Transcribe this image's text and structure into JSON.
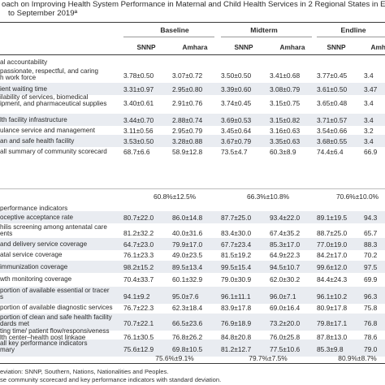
{
  "title": {
    "line1": "oach on Improving Health System Performance in Maternal and Child Health Services in 2 Regional States in Ethiopia, O",
    "line2": "to September 2019ª"
  },
  "groups": [
    "Baseline",
    "Midterm",
    "Endline"
  ],
  "subheaders": [
    "SNNP",
    "Amhara",
    "SNNP",
    "Amhara",
    "SNNP",
    "Amhara"
  ],
  "sections": {
    "s1": "al accountability",
    "s2": "performance indicators"
  },
  "rows": [
    {
      "label": [
        "passionate, respectful, and caring",
        "h work force"
      ],
      "vals": [
        "3.78±0.50",
        "3.07±0.72",
        "3.50±0.50",
        "3.41±0.68",
        "3.77±0.45",
        "3.4"
      ]
    },
    {
      "label": [
        "ient waiting time"
      ],
      "vals": [
        "3.31±0.97",
        "2.95±0.80",
        "3.39±0.60",
        "3.08±0.79",
        "3.61±0.50",
        "3.47"
      ]
    },
    {
      "label": [
        "ilability of services, biomedical",
        "ipment, and pharmaceutical supplies"
      ],
      "vals": [
        "3.40±0.61",
        "2.91±0.76",
        "3.74±0.45",
        "3.15±0.75",
        "3.65±0.48",
        "3.4"
      ]
    },
    {
      "label": [
        "lth facility infrastructure"
      ],
      "vals": [
        "3.44±0.70",
        "2.88±0.74",
        "3.69±0.53",
        "3.15±0.82",
        "3.71±0.57",
        "3.4"
      ]
    },
    {
      "label": [
        "ulance service and management"
      ],
      "vals": [
        "3.11±0.56",
        "2.95±0.79",
        "3.45±0.64",
        "3.16±0.63",
        "3.54±0.66",
        "3.2"
      ]
    },
    {
      "label": [
        "an and safe health facility"
      ],
      "vals": [
        "3.53±0.50",
        "3.28±0.88",
        "3.67±0.79",
        "3.35±0.63",
        "3.68±0.55",
        "3.4"
      ]
    },
    {
      "label": [
        "all summary of community scorecard"
      ],
      "vals": [
        "68.7±6.6",
        "58.9±12.8",
        "73.5±4.7",
        "60.3±8.9",
        "74.4±6.4",
        "66.9"
      ]
    },
    {
      "label": [
        "oceptive acceptance rate"
      ],
      "vals": [
        "80.7±22.0",
        "86.0±14.8",
        "87.7±25.0",
        "93.4±22.0",
        "89.1±19.5",
        "94.3"
      ]
    },
    {
      "label": [
        "hilis screening among antenatal care",
        "ents"
      ],
      "vals": [
        "81.2±32.2",
        "40.0±31.6",
        "83.4±30.0",
        "67.4±35.2",
        "88.7±25.0",
        "65.7"
      ]
    },
    {
      "label": [
        "and delivery service coverage"
      ],
      "vals": [
        "64.7±23.0",
        "79.9±17.0",
        "67.7±23.4",
        "85.3±17.0",
        "77.0±19.0",
        "88.3"
      ]
    },
    {
      "label": [
        "atal service coverage"
      ],
      "vals": [
        "76.1±23.3",
        "49.0±23.5",
        "81.5±19.2",
        "64.9±22.3",
        "84.2±17.0",
        "70.2"
      ]
    },
    {
      "label": [
        "immunization coverage"
      ],
      "vals": [
        "98.2±15.2",
        "89.5±13.4",
        "99.5±15.4",
        "94.5±10.7",
        "99.6±12.0",
        "97.5"
      ]
    },
    {
      "label": [
        "wth monitoring coverage"
      ],
      "vals": [
        "70.4±33.7",
        "60.1±32.9",
        "79.0±30.9",
        "62.0±30.2",
        "84.4±24.3",
        "69.9"
      ]
    },
    {
      "label": [
        "portion of available essential or tracer",
        "s"
      ],
      "vals": [
        "94.1±9.2",
        "95.0±7.6",
        "96.1±11.1",
        "96.0±7.1",
        "96.1±10.2",
        "96.3"
      ]
    },
    {
      "label": [
        "portion of available diagnostic services"
      ],
      "vals": [
        "76.7±22.3",
        "62.3±18.4",
        "83.9±17.8",
        "69.0±16.4",
        "80.9±17.8",
        "75.8"
      ]
    },
    {
      "label": [
        "portion of clean and safe health facility",
        "dards met"
      ],
      "vals": [
        "70.7±22.1",
        "66.5±23.6",
        "76.9±18.9",
        "73.2±20.0",
        "79.8±17.1",
        "76.8"
      ]
    },
    {
      "label": [
        "ting time/ patient flow/responsiveness",
        "lth center–health post linkage"
      ],
      "vals": [
        "76.1±30.5",
        "76.8±26.2",
        "84.8±20.8",
        "76.0±25.8",
        "87.8±13.0",
        "78.6"
      ]
    },
    {
      "label": [
        "all key performance indicators",
        "mary"
      ],
      "vals": [
        "75.6±12.9",
        "69.8±10.5",
        "81.2±12.7",
        "77.5±10.6",
        "85.3±9.8",
        "79.0"
      ]
    }
  ],
  "summary1": [
    "60.8%±12.5%",
    "66.3%±10.8%",
    "70.6%±10.0%"
  ],
  "summary2": [
    "75.6%±9.1%",
    "79.7%±7.5%",
    "80.9%±8.7%"
  ],
  "footnote": {
    "line1": "eviation: SNNP, Southern, Nations, Nationalities and Peoples.",
    "line2": "se community scorecard and key performance indicators with standard deviation."
  }
}
